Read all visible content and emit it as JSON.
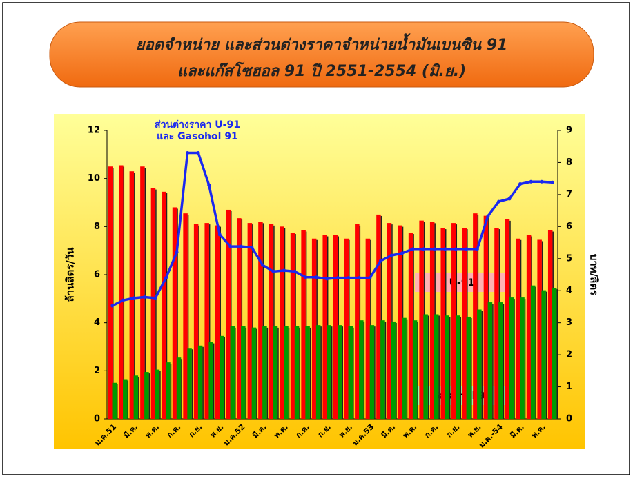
{
  "chart_data": {
    "type": "bar_line",
    "title_lines": [
      "ยอดจำหน่าย และส่วนต่างราคาจำหน่ายน้ำมันเบนซิน 91",
      "และแก๊สโซฮอล 91 ปี 2551-2554 (มิ.ย.)"
    ],
    "y_label": "ล้านลิตร/วัน",
    "y2_label": "บาท/ลิตร",
    "categories": [
      "ม.ค.51",
      null,
      "มี.ค.",
      null,
      "พ.ค.",
      null,
      "ก.ค.",
      null,
      "ก.ย.",
      null,
      "พ.ย.",
      null,
      "ม.ค.52",
      null,
      "มี.ค.",
      null,
      "พ.ค.",
      null,
      "ก.ค.",
      null,
      "ก.ย.",
      null,
      "พ.ย.",
      null,
      "ม.ค.53",
      null,
      "มี.ค.",
      null,
      "พ.ค.",
      null,
      "ก.ค.",
      null,
      "ก.ย.",
      null,
      "พ.ย.",
      null,
      "ม.ค.-54",
      null,
      "มี.ค.",
      null,
      "พ.ค.",
      null
    ],
    "ylim": [
      0,
      12
    ],
    "yticks": [
      0,
      2,
      4,
      6,
      8,
      10,
      12
    ],
    "y2lim": [
      0,
      9
    ],
    "y2ticks": [
      0,
      1,
      2,
      3,
      4,
      5,
      6,
      7,
      8,
      9
    ],
    "series": [
      {
        "name": "U-91",
        "type": "bar",
        "color": "#ff0000",
        "values": [
          10.5,
          10.55,
          10.3,
          10.5,
          9.6,
          9.45,
          8.8,
          8.55,
          8.1,
          8.15,
          8.05,
          8.7,
          8.35,
          8.15,
          8.2,
          8.1,
          8.0,
          7.75,
          7.85,
          7.5,
          7.65,
          7.65,
          7.5,
          8.1,
          7.5,
          8.5,
          8.15,
          8.05,
          7.75,
          8.25,
          8.2,
          7.95,
          8.15,
          7.95,
          8.55,
          8.45,
          7.95,
          8.3,
          7.5,
          7.65,
          7.45,
          7.85
        ]
      },
      {
        "name": "Gasohol 91",
        "type": "bar",
        "color": "#009a00",
        "values": [
          1.5,
          1.65,
          1.8,
          1.95,
          2.05,
          2.35,
          2.55,
          2.95,
          3.05,
          3.2,
          3.45,
          3.85,
          3.85,
          3.8,
          3.85,
          3.85,
          3.85,
          3.85,
          3.85,
          3.9,
          3.9,
          3.9,
          3.85,
          4.1,
          3.9,
          4.1,
          4.05,
          4.2,
          4.1,
          4.35,
          4.35,
          4.3,
          4.3,
          4.25,
          4.55,
          4.85,
          4.85,
          5.05,
          5.05,
          5.55,
          5.35,
          5.45
        ]
      },
      {
        "name_lines": [
          "ส่วนต่างราคา U-91",
          "และ Gasohol 91"
        ],
        "type": "line",
        "axis": "y2",
        "color": "#1a28f0",
        "values": [
          3.53,
          3.7,
          3.77,
          3.8,
          3.77,
          4.4,
          5.2,
          8.3,
          8.3,
          7.3,
          5.75,
          5.38,
          5.38,
          5.35,
          4.8,
          4.6,
          4.63,
          4.6,
          4.42,
          4.42,
          4.37,
          4.4,
          4.4,
          4.4,
          4.4,
          4.93,
          5.1,
          5.17,
          5.3,
          5.3,
          5.3,
          5.3,
          5.3,
          5.3,
          5.3,
          6.33,
          6.78,
          6.87,
          7.33,
          7.4,
          7.4,
          7.38
        ]
      }
    ]
  }
}
